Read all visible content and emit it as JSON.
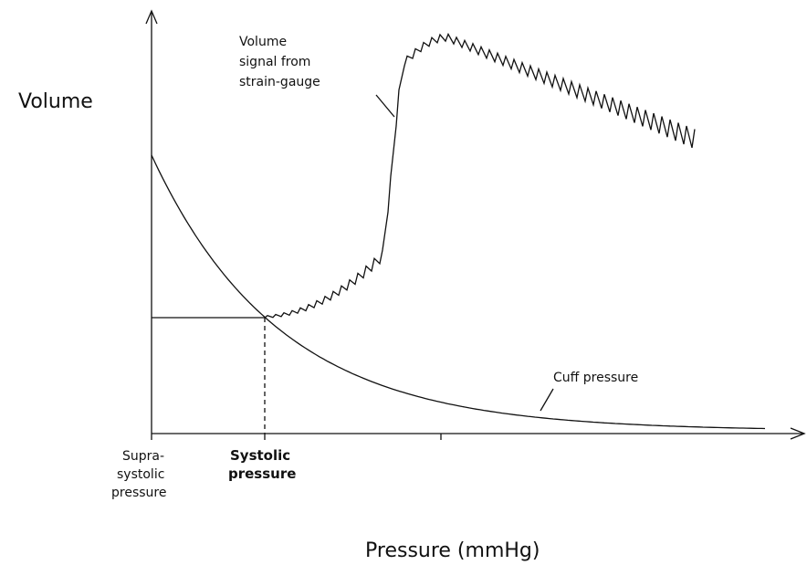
{
  "y_axis_label": "Volume",
  "x_axis_label": "Pressure (mmHg)",
  "annotations": {
    "volume_signal": [
      "Volume",
      "signal from",
      "strain-gauge"
    ],
    "cuff_pressure": "Cuff pressure"
  },
  "x_labels": {
    "supra_systolic": [
      "Supra-",
      "systolic",
      "pressure"
    ],
    "systolic": [
      "Systolic",
      "pressure"
    ]
  }
}
